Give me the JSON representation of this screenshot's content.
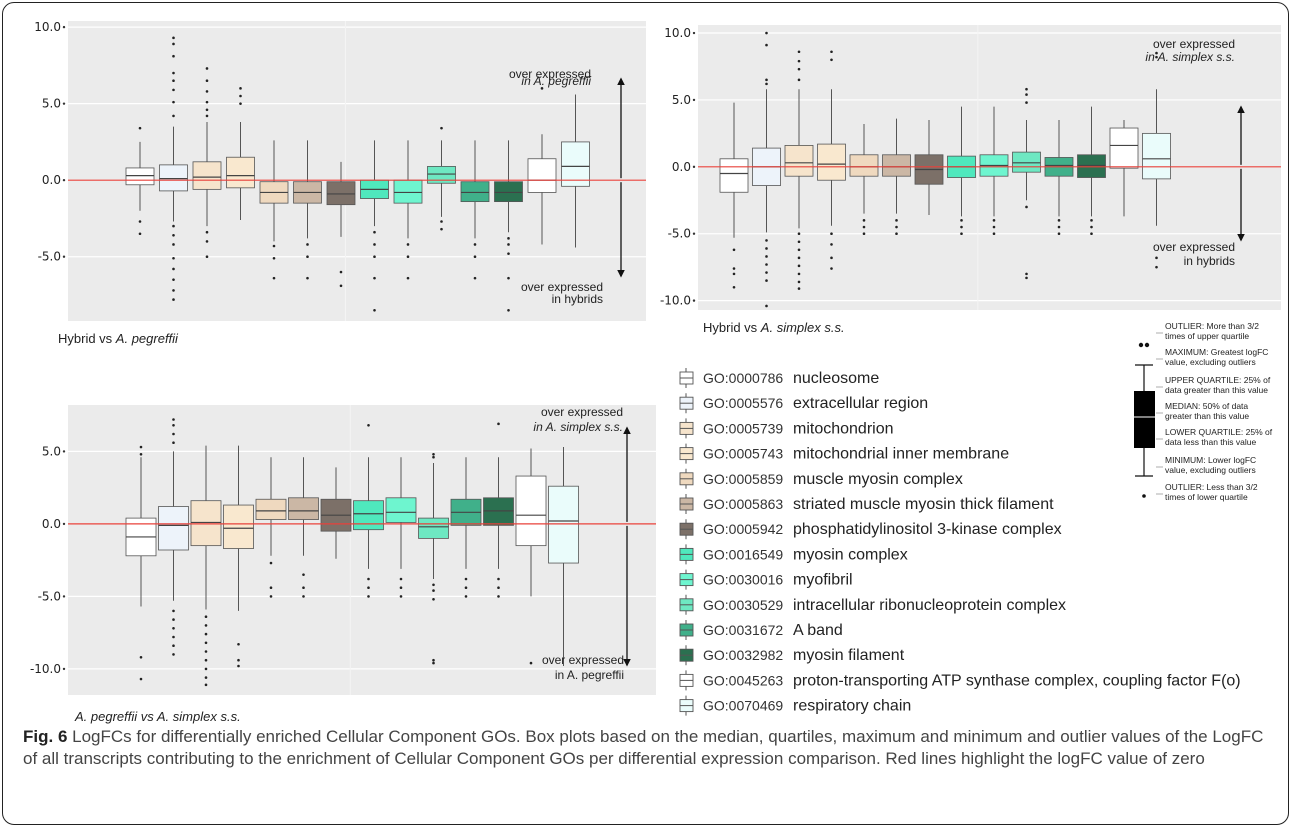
{
  "figure": {
    "label": "Fig. 6",
    "caption": "LogFCs for differentially enriched Cellular Component GOs. Box plots based on the median, quartiles, maximum and minimum and outlier values of the LogFC of all transcripts contributing to the enrichment of Cellular Component GOs per differential expression comparison. Red lines highlight the logFC value of zero"
  },
  "colors": [
    "#ffffff",
    "#edf3fa",
    "#f6e4cc",
    "#f9e8cf",
    "#efd9bf",
    "#cbb7a5",
    "#7c7068",
    "#4fe8bd",
    "#6ef5cf",
    "#6ee8c2",
    "#40b08a",
    "#2b7050",
    "#ffffff",
    "#eafcfb"
  ],
  "legend": {
    "items": [
      {
        "go": "GO:0000786",
        "name": "nucleosome"
      },
      {
        "go": "GO:0005576",
        "name": "extracellular region"
      },
      {
        "go": "GO:0005739",
        "name": "mitochondrion"
      },
      {
        "go": "GO:0005743",
        "name": "mitochondrial inner membrane"
      },
      {
        "go": "GO:0005859",
        "name": "muscle myosin complex"
      },
      {
        "go": "GO:0005863",
        "name": "striated muscle myosin thick filament"
      },
      {
        "go": "GO:0005942",
        "name": "phosphatidylinositol 3-kinase complex"
      },
      {
        "go": "GO:0016549",
        "name": "myosin complex"
      },
      {
        "go": "GO:0030016",
        "name": "myofibril"
      },
      {
        "go": "GO:0030529",
        "name": "intracellular ribonucleoprotein complex"
      },
      {
        "go": "GO:0031672",
        "name": "A band"
      },
      {
        "go": "GO:0032982",
        "name": "myosin filament"
      },
      {
        "go": "GO:0045263",
        "name": "proton-transporting ATP synthase complex, coupling factor F(o)"
      },
      {
        "go": "GO:0070469",
        "name": "respiratory chain"
      }
    ]
  },
  "key": {
    "outlier_high": [
      "OUTLIER: More than 3/2",
      "times of upper quartile"
    ],
    "maximum": [
      "MAXIMUM: Greatest logFC",
      "value, excluding outliers"
    ],
    "upper_quartile": [
      "UPPER QUARTILE: 25% of",
      "data greater than this value"
    ],
    "median": [
      "MEDIAN: 50% of data",
      "greater than this value"
    ],
    "lower_quartile": [
      "LOWER QUARTILE: 25% of",
      "data less than this value"
    ],
    "minimum": [
      "MINIMUM: Lower logFC",
      "value, excluding outliers"
    ],
    "outlier_low": [
      "OUTLIER: Less than 3/2",
      "times of lower quartile"
    ]
  },
  "chart_data": [
    {
      "type": "boxplot",
      "title": "Hybrid vs A. pegreffii",
      "title_parts": [
        "Hybrid vs ",
        "A. pegreffii"
      ],
      "ylim": [
        -9.2,
        10.4
      ],
      "yticks": [
        10,
        5,
        0,
        -5
      ],
      "ytick_labels": [
        "10.0",
        "5.0",
        "0.0",
        "-5.0"
      ],
      "zero_line": 0,
      "arrow_up_label": [
        "over expressed",
        "in A. pegreffii"
      ],
      "arrow_down_label": [
        "over expressed",
        "in hybrids"
      ],
      "boxes": [
        {
          "go": "GO:0000786",
          "q1": -0.3,
          "median": 0.3,
          "q3": 0.8,
          "whisker_low": -2.0,
          "whisker_high": 2.5,
          "outliers": [
            3.4,
            -2.7,
            -3.5
          ]
        },
        {
          "go": "GO:0005576",
          "q1": -0.7,
          "median": 0.1,
          "q3": 1.0,
          "whisker_low": -2.7,
          "whisker_high": 3.5,
          "outliers": [
            9.3,
            8.9,
            8.1,
            7.0,
            6.5,
            5.9,
            5.1,
            4.2,
            -3.0,
            -3.6,
            -4.2,
            -5.1,
            -5.8,
            -6.5,
            -7.2,
            -7.8
          ]
        },
        {
          "go": "GO:0005739",
          "q1": -0.6,
          "median": 0.2,
          "q3": 1.2,
          "whisker_low": -3.0,
          "whisker_high": 3.8,
          "outliers": [
            7.3,
            6.5,
            5.8,
            5.1,
            4.6,
            4.2,
            -3.4,
            -4.0,
            -5.0
          ]
        },
        {
          "go": "GO:0005743",
          "q1": -0.5,
          "median": 0.3,
          "q3": 1.5,
          "whisker_low": -2.6,
          "whisker_high": 3.8,
          "outliers": [
            6.0,
            5.5,
            5.0
          ]
        },
        {
          "go": "GO:0005859",
          "q1": -1.5,
          "median": -0.8,
          "q3": -0.1,
          "whisker_low": -4.0,
          "whisker_high": 2.6,
          "outliers": [
            -4.3,
            -5.1,
            -6.4
          ]
        },
        {
          "go": "GO:0005863",
          "q1": -1.5,
          "median": -0.8,
          "q3": -0.1,
          "whisker_low": -3.8,
          "whisker_high": 2.6,
          "outliers": [
            -4.2,
            -5.0,
            -6.4
          ]
        },
        {
          "go": "GO:0005942",
          "q1": -1.6,
          "median": -0.9,
          "q3": -0.1,
          "whisker_low": -3.7,
          "whisker_high": 1.2,
          "outliers": [
            -6.0,
            -6.9
          ]
        },
        {
          "go": "GO:0016549",
          "q1": -1.2,
          "median": -0.6,
          "q3": 0.0,
          "whisker_low": -3.0,
          "whisker_high": 2.6,
          "outliers": [
            -3.4,
            -4.2,
            -5.0,
            -6.4,
            -8.5
          ]
        },
        {
          "go": "GO:0030016",
          "q1": -1.5,
          "median": -0.8,
          "q3": 0.0,
          "whisker_low": -3.8,
          "whisker_high": 2.6,
          "outliers": [
            -4.2,
            -5.0,
            -6.4
          ]
        },
        {
          "go": "GO:0030529",
          "q1": -0.2,
          "median": 0.4,
          "q3": 0.9,
          "whisker_low": -2.4,
          "whisker_high": 2.6,
          "outliers": [
            3.4,
            -2.7,
            -3.2
          ]
        },
        {
          "go": "GO:0031672",
          "q1": -1.4,
          "median": -0.8,
          "q3": -0.1,
          "whisker_low": -3.8,
          "whisker_high": 2.6,
          "outliers": [
            -4.2,
            -5.0,
            -6.4
          ]
        },
        {
          "go": "GO:0032982",
          "q1": -1.4,
          "median": -0.8,
          "q3": -0.1,
          "whisker_low": -3.4,
          "whisker_high": 2.6,
          "outliers": [
            -3.8,
            -4.2,
            -4.8,
            -6.4,
            -8.5
          ]
        },
        {
          "go": "GO:0045263",
          "q1": -0.8,
          "median": 0.0,
          "q3": 1.4,
          "whisker_low": -4.2,
          "whisker_high": 3.0,
          "outliers": [
            6.0
          ]
        },
        {
          "go": "GO:0070469",
          "q1": -0.4,
          "median": 0.9,
          "q3": 2.5,
          "whisker_low": -4.4,
          "whisker_high": 5.6,
          "outliers": []
        }
      ]
    },
    {
      "type": "boxplot",
      "title": "Hybrid vs A. simplex s.s.",
      "title_parts": [
        "Hybrid vs ",
        "A. simplex s.s."
      ],
      "ylim": [
        -10.7,
        10.6
      ],
      "yticks": [
        10,
        5,
        0,
        -5,
        -10
      ],
      "ytick_labels": [
        "10.0",
        "5.0",
        "0.0",
        "-5.0",
        "-10.0"
      ],
      "zero_line": 0,
      "arrow_up_label": [
        "over expressed",
        "in A. simplex s.s."
      ],
      "arrow_down_label": [
        "over expressed",
        "in hybrids"
      ],
      "boxes": [
        {
          "go": "GO:0000786",
          "q1": -1.9,
          "median": -0.5,
          "q3": 0.6,
          "whisker_low": -5.3,
          "whisker_high": 4.8,
          "outliers": [
            -6.2,
            -7.6,
            -8.0,
            -9.0
          ]
        },
        {
          "go": "GO:0005576",
          "q1": -1.4,
          "median": 0.0,
          "q3": 1.4,
          "whisker_low": -4.9,
          "whisker_high": 5.8,
          "outliers": [
            10.0,
            9.1,
            6.5,
            6.2,
            -5.5,
            -6.1,
            -6.7,
            -7.3,
            -7.9,
            -8.5,
            -10.4
          ]
        },
        {
          "go": "GO:0005739",
          "q1": -0.7,
          "median": 0.3,
          "q3": 1.6,
          "whisker_low": -4.6,
          "whisker_high": 5.8,
          "outliers": [
            8.6,
            7.9,
            7.3,
            6.5,
            -5.0,
            -5.6,
            -6.2,
            -6.8,
            -7.4,
            -8.0,
            -8.6,
            -9.1
          ]
        },
        {
          "go": "GO:0005743",
          "q1": -1.0,
          "median": 0.2,
          "q3": 1.7,
          "whisker_low": -4.4,
          "whisker_high": 5.8,
          "outliers": [
            8.6,
            8.0,
            -5.0,
            -5.8,
            -6.8,
            -7.6
          ]
        },
        {
          "go": "GO:0005859",
          "q1": -0.7,
          "median": 0.0,
          "q3": 0.9,
          "whisker_low": -3.5,
          "whisker_high": 3.2,
          "outliers": [
            -4.0,
            -4.5,
            -5.0
          ]
        },
        {
          "go": "GO:0005863",
          "q1": -0.7,
          "median": 0.0,
          "q3": 0.9,
          "whisker_low": -3.5,
          "whisker_high": 3.6,
          "outliers": [
            -4.0,
            -4.5,
            -5.0
          ]
        },
        {
          "go": "GO:0005942",
          "q1": -1.3,
          "median": -0.2,
          "q3": 0.9,
          "whisker_low": -3.6,
          "whisker_high": 3.5,
          "outliers": []
        },
        {
          "go": "GO:0016549",
          "q1": -0.8,
          "median": 0.0,
          "q3": 0.8,
          "whisker_low": -3.7,
          "whisker_high": 4.5,
          "outliers": [
            -4.0,
            -4.5,
            -5.0
          ]
        },
        {
          "go": "GO:0030016",
          "q1": -0.7,
          "median": 0.1,
          "q3": 0.9,
          "whisker_low": -3.7,
          "whisker_high": 4.5,
          "outliers": [
            -4.0,
            -4.5,
            -5.0
          ]
        },
        {
          "go": "GO:0030529",
          "q1": -0.4,
          "median": 0.3,
          "q3": 1.1,
          "whisker_low": -2.5,
          "whisker_high": 3.5,
          "outliers": [
            5.8,
            5.4,
            4.8,
            -3.0,
            -8.0,
            -8.3
          ]
        },
        {
          "go": "GO:0031672",
          "q1": -0.7,
          "median": 0.1,
          "q3": 0.7,
          "whisker_low": -3.7,
          "whisker_high": 3.5,
          "outliers": [
            -4.0,
            -4.5,
            -5.0
          ]
        },
        {
          "go": "GO:0032982",
          "q1": -0.8,
          "median": 0.1,
          "q3": 0.9,
          "whisker_low": -3.7,
          "whisker_high": 4.5,
          "outliers": [
            -4.0,
            -4.5,
            -5.0
          ]
        },
        {
          "go": "GO:0045263",
          "q1": -0.1,
          "median": 1.6,
          "q3": 2.9,
          "whisker_low": -3.7,
          "whisker_high": 3.5,
          "outliers": []
        },
        {
          "go": "GO:0070469",
          "q1": -0.9,
          "median": 0.6,
          "q3": 2.5,
          "whisker_low": -4.4,
          "whisker_high": 5.8,
          "outliers": [
            8.5,
            8.2,
            -6.8,
            -7.5
          ]
        }
      ]
    },
    {
      "type": "boxplot",
      "title": "A. pegreffii vs A. simplex s.s.",
      "title_parts": [
        "",
        "A. pegreffii vs A. simplex s.s."
      ],
      "ylim": [
        -11.8,
        8.2
      ],
      "yticks": [
        5,
        0,
        -5,
        -10
      ],
      "ytick_labels": [
        "5.0",
        "0.0",
        "-5.0",
        "-10.0"
      ],
      "zero_line": 0,
      "arrow_up_label": [
        "over expressed",
        "in A. simplex s.s."
      ],
      "arrow_down_label": [
        "over expressed",
        "in A. pegreffii"
      ],
      "boxes": [
        {
          "go": "GO:0000786",
          "q1": -2.2,
          "median": -0.9,
          "q3": 0.4,
          "whisker_low": -5.7,
          "whisker_high": 4.6,
          "outliers": [
            5.3,
            4.8,
            -9.2,
            -10.7
          ]
        },
        {
          "go": "GO:0005576",
          "q1": -1.8,
          "median": -0.1,
          "q3": 1.2,
          "whisker_low": -5.3,
          "whisker_high": 5.0,
          "outliers": [
            7.2,
            6.8,
            6.2,
            5.6,
            -6.0,
            -6.6,
            -7.2,
            -7.8,
            -8.4,
            -9.0
          ]
        },
        {
          "go": "GO:0005739",
          "q1": -1.5,
          "median": 0.1,
          "q3": 1.6,
          "whisker_low": -5.9,
          "whisker_high": 5.4,
          "outliers": [
            -6.4,
            -7.0,
            -7.6,
            -8.2,
            -8.8,
            -9.4,
            -10.0,
            -10.6,
            -11.1
          ]
        },
        {
          "go": "GO:0005743",
          "q1": -1.7,
          "median": -0.3,
          "q3": 1.3,
          "whisker_low": -6.0,
          "whisker_high": 5.4,
          "outliers": [
            -8.3,
            -9.4,
            -9.8
          ]
        },
        {
          "go": "GO:0005859",
          "q1": 0.3,
          "median": 0.9,
          "q3": 1.7,
          "whisker_low": -2.2,
          "whisker_high": 4.6,
          "outliers": [
            -2.7,
            -4.4,
            -5.0
          ]
        },
        {
          "go": "GO:0005863",
          "q1": 0.3,
          "median": 0.9,
          "q3": 1.8,
          "whisker_low": -2.2,
          "whisker_high": 4.6,
          "outliers": [
            -3.5,
            -4.4,
            -5.0
          ]
        },
        {
          "go": "GO:0005942",
          "q1": -0.5,
          "median": 0.6,
          "q3": 1.7,
          "whisker_low": -2.4,
          "whisker_high": 3.9,
          "outliers": []
        },
        {
          "go": "GO:0016549",
          "q1": -0.4,
          "median": 0.7,
          "q3": 1.6,
          "whisker_low": -3.1,
          "whisker_high": 4.6,
          "outliers": [
            6.8,
            -3.8,
            -4.4,
            -5.0
          ]
        },
        {
          "go": "GO:0030016",
          "q1": 0.1,
          "median": 0.8,
          "q3": 1.8,
          "whisker_low": -3.1,
          "whisker_high": 4.6,
          "outliers": [
            -3.8,
            -4.4,
            -5.0
          ]
        },
        {
          "go": "GO:0030529",
          "q1": -1.0,
          "median": -0.2,
          "q3": 0.4,
          "whisker_low": -3.8,
          "whisker_high": 4.2,
          "outliers": [
            4.8,
            4.6,
            -4.2,
            -4.6,
            -5.2,
            -9.4,
            -9.6
          ]
        },
        {
          "go": "GO:0031672",
          "q1": -0.1,
          "median": 0.8,
          "q3": 1.7,
          "whisker_low": -3.1,
          "whisker_high": 4.6,
          "outliers": [
            -3.8,
            -4.4,
            -5.0
          ]
        },
        {
          "go": "GO:0032982",
          "q1": -0.1,
          "median": 0.9,
          "q3": 1.8,
          "whisker_low": -3.1,
          "whisker_high": 4.6,
          "outliers": [
            6.9,
            -3.8,
            -4.4,
            -5.0
          ]
        },
        {
          "go": "GO:0045263",
          "q1": -1.5,
          "median": 0.6,
          "q3": 3.3,
          "whisker_low": -5.0,
          "whisker_high": 5.2,
          "outliers": [
            -9.6
          ]
        },
        {
          "go": "GO:0070469",
          "q1": -2.7,
          "median": 0.2,
          "q3": 2.6,
          "whisker_low": -9.8,
          "whisker_high": 5.3,
          "outliers": []
        }
      ]
    }
  ]
}
